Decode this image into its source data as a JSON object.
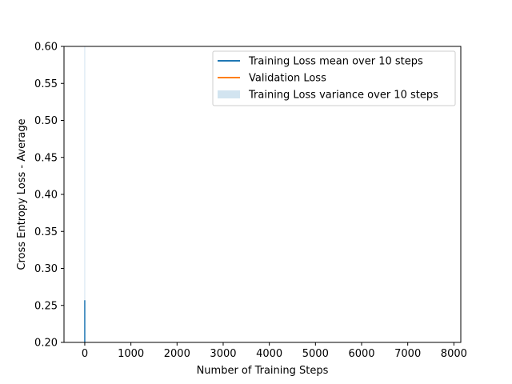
{
  "chart_data": {
    "type": "line",
    "xlabel": "Number of Training Steps",
    "ylabel": "Cross Entropy Loss - Average",
    "xlim": [
      -450,
      8150
    ],
    "ylim": [
      0.2,
      0.6
    ],
    "xticks": [
      0,
      1000,
      2000,
      3000,
      4000,
      5000,
      6000,
      7000,
      8000
    ],
    "yticks": [
      0.2,
      0.25,
      0.3,
      0.35,
      0.4,
      0.45,
      0.5,
      0.55,
      0.6
    ],
    "grid": false,
    "legend_position": "top-right",
    "series": [
      {
        "name": "Training Loss mean over 10 steps",
        "color": "#1f77b4",
        "x": [
          0,
          0
        ],
        "y": [
          0.2,
          0.257
        ]
      },
      {
        "name": "Validation Loss",
        "color": "#ff7f0e",
        "x": [],
        "y": []
      }
    ],
    "bands": [
      {
        "name": "Training Loss variance over 10 steps",
        "color": "#1f77b4",
        "opacity": 0.2,
        "x": [
          0,
          0
        ],
        "lower": [
          0.2,
          0.2
        ],
        "upper": [
          0.6,
          0.6
        ]
      }
    ]
  }
}
